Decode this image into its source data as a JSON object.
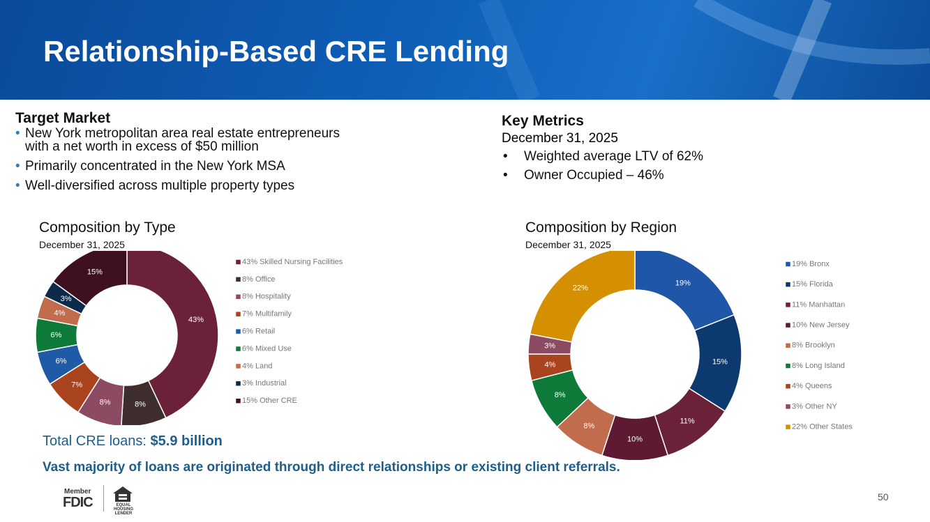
{
  "header": {
    "title": "Relationship-Based CRE Lending"
  },
  "target_market": {
    "heading": "Target Market",
    "bullets": [
      "New York metropolitan area real estate entrepreneurs with a net worth in excess of $50 million",
      "Primarily concentrated in the New York MSA",
      "Well-diversified across multiple property types"
    ]
  },
  "key_metrics": {
    "heading": "Key Metrics",
    "date": "December 31, 2025",
    "bullets": [
      "Weighted average LTV of 62%",
      "Owner Occupied – 46%"
    ]
  },
  "chart_data": [
    {
      "type": "donut",
      "title": "Composition by Type",
      "subtitle": "December 31, 2025",
      "categories": [
        "43% Skilled Nursing Facilities",
        "8% Office",
        "8% Hospitality",
        "7% Multifamily",
        "6% Retail",
        "6% Mixed Use",
        "4% Land",
        "3% Industrial",
        "15% Other CRE"
      ],
      "values": [
        43,
        8,
        8,
        7,
        6,
        6,
        4,
        3,
        15
      ],
      "value_labels": [
        "43%",
        "8%",
        "8%",
        "7%",
        "6%",
        "6%",
        "4%",
        "3%",
        "15%"
      ],
      "colors": [
        "#6b2239",
        "#3f2e2e",
        "#8c4a63",
        "#a9441f",
        "#1f5aa6",
        "#0e7a3a",
        "#c26c4e",
        "#0d2a4a",
        "#3e1020"
      ]
    },
    {
      "type": "donut",
      "title": "Composition by Region",
      "subtitle": "December 31, 2025",
      "categories": [
        "19% Bronx",
        "15% Florida",
        "11% Manhattan",
        "10% New Jersey",
        "8% Brooklyn",
        "8% Long Island",
        "4% Queens",
        "3% Other NY",
        "22% Other States"
      ],
      "values": [
        19,
        15,
        11,
        10,
        8,
        8,
        4,
        3,
        22
      ],
      "value_labels": [
        "19%",
        "15%",
        "11%",
        "10%",
        "8%",
        "8%",
        "4%",
        "3%",
        "22%"
      ],
      "colors": [
        "#1f56a8",
        "#0d3a6e",
        "#6b2239",
        "#5e1a33",
        "#c26c4e",
        "#0e7a3a",
        "#a9441f",
        "#8c4a63",
        "#d49000"
      ]
    }
  ],
  "footer": {
    "total_label": "Total CRE loans: ",
    "total_value": "$5.9 billion",
    "note": "Vast majority of loans are originated through direct relationships or existing client referrals.",
    "fdic_member": "Member",
    "fdic": "FDIC",
    "housing": "EQUAL HOUSING LENDER",
    "page": "50"
  }
}
